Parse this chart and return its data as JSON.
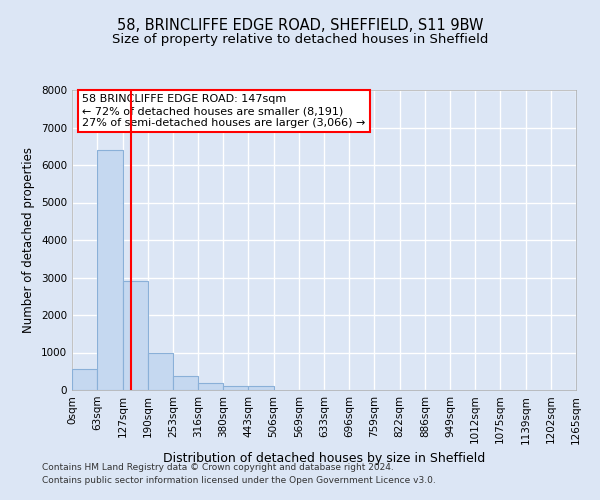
{
  "title1": "58, BRINCLIFFE EDGE ROAD, SHEFFIELD, S11 9BW",
  "title2": "Size of property relative to detached houses in Sheffield",
  "xlabel": "Distribution of detached houses by size in Sheffield",
  "ylabel": "Number of detached properties",
  "bar_color": "#c5d8f0",
  "bar_edge_color": "#8ab0d8",
  "bin_edges": [
    0,
    63,
    127,
    190,
    253,
    316,
    380,
    443,
    506,
    569,
    633,
    696,
    759,
    822,
    886,
    949,
    1012,
    1075,
    1139,
    1202,
    1265
  ],
  "bar_heights": [
    560,
    6400,
    2920,
    975,
    380,
    175,
    100,
    100,
    0,
    0,
    0,
    0,
    0,
    0,
    0,
    0,
    0,
    0,
    0,
    0
  ],
  "x_tick_labels": [
    "0sqm",
    "63sqm",
    "127sqm",
    "190sqm",
    "253sqm",
    "316sqm",
    "380sqm",
    "443sqm",
    "506sqm",
    "569sqm",
    "633sqm",
    "696sqm",
    "759sqm",
    "822sqm",
    "886sqm",
    "949sqm",
    "1012sqm",
    "1075sqm",
    "1139sqm",
    "1202sqm",
    "1265sqm"
  ],
  "y_ticks": [
    0,
    1000,
    2000,
    3000,
    4000,
    5000,
    6000,
    7000,
    8000
  ],
  "red_line_x": 147,
  "annotation_text": "58 BRINCLIFFE EDGE ROAD: 147sqm\n← 72% of detached houses are smaller (8,191)\n27% of semi-detached houses are larger (3,066) →",
  "footer1": "Contains HM Land Registry data © Crown copyright and database right 2024.",
  "footer2": "Contains public sector information licensed under the Open Government Licence v3.0.",
  "bg_color": "#dce6f5",
  "grid_color": "#ffffff",
  "annotation_box_color": "white",
  "annotation_box_edge_color": "red",
  "title1_fontsize": 10.5,
  "title2_fontsize": 9.5,
  "xlabel_fontsize": 9,
  "ylabel_fontsize": 8.5,
  "tick_fontsize": 7.5,
  "annotation_fontsize": 8,
  "footer_fontsize": 6.5,
  "ylim": [
    0,
    8000
  ]
}
